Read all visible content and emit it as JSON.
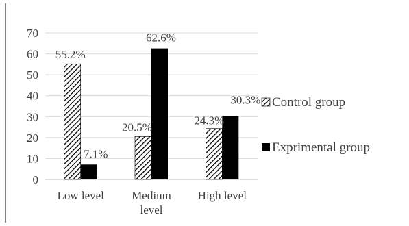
{
  "chart_data": {
    "type": "bar",
    "title": "",
    "xlabel": "",
    "ylabel": "",
    "ylim": [
      0,
      70
    ],
    "yticks": [
      0,
      10,
      20,
      30,
      40,
      50,
      60,
      70
    ],
    "grid": true,
    "legend_position": "right",
    "categories": [
      [
        "Low level"
      ],
      [
        "Medium",
        "level"
      ],
      [
        "High level"
      ]
    ],
    "series": [
      {
        "name": "Control group",
        "pattern": "diagonal-hatch",
        "color": "#000000",
        "values": [
          55.2,
          20.5,
          24.3
        ],
        "labels": [
          "55.2%",
          "20.5%",
          "24.3%"
        ]
      },
      {
        "name": "Exprimental group",
        "pattern": "solid",
        "color": "#000000",
        "values": [
          7.1,
          62.6,
          30.3
        ],
        "labels": [
          "7.1%",
          "62.6%",
          "30.3%"
        ]
      }
    ]
  }
}
